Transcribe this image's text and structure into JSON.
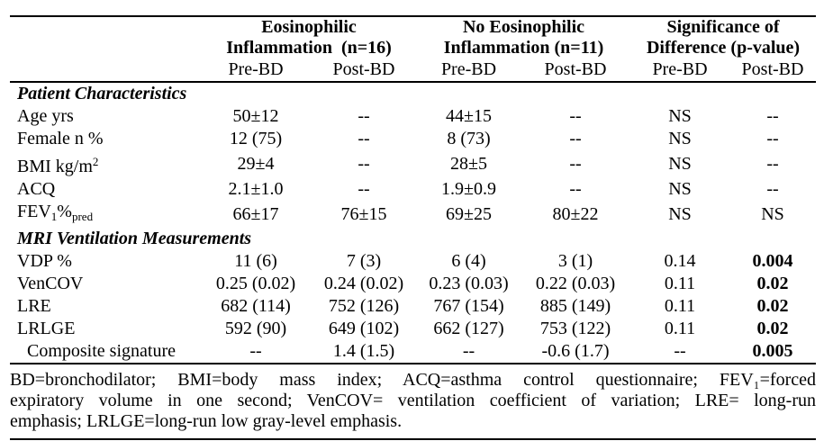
{
  "table": {
    "col_groups": [
      {
        "line1": "Eosinophilic",
        "line2": "Inflammation  (n=16)"
      },
      {
        "line1": "No Eosinophilic",
        "line2": "Inflammation (n=11)"
      },
      {
        "line1": "Significance of",
        "line2": "Difference (p-value)"
      }
    ],
    "sub_headers": [
      "Pre-BD",
      "Post-BD",
      "Pre-BD",
      "Post-BD",
      "Pre-BD",
      "Post-BD"
    ],
    "sections": [
      {
        "title": "Patient Characteristics",
        "rows": [
          {
            "label_parts": [
              {
                "t": "Age yrs"
              }
            ],
            "cells": [
              "50±12",
              "--",
              "44±15",
              "--",
              "NS",
              "--"
            ],
            "bold_cells": []
          },
          {
            "label_parts": [
              {
                "t": "Female n %"
              }
            ],
            "cells": [
              "12 (75)",
              "--",
              "8 (73)",
              "--",
              "NS",
              "--"
            ],
            "bold_cells": []
          },
          {
            "label_parts": [
              {
                "t": "BMI kg/m"
              },
              {
                "t": "2",
                "sup": true
              }
            ],
            "cells": [
              "29±4",
              "--",
              "28±5",
              "--",
              "NS",
              "--"
            ],
            "bold_cells": []
          },
          {
            "label_parts": [
              {
                "t": "ACQ"
              }
            ],
            "cells": [
              "2.1±1.0",
              "--",
              "1.9±0.9",
              "--",
              "NS",
              "--"
            ],
            "bold_cells": []
          },
          {
            "label_parts": [
              {
                "t": "FEV"
              },
              {
                "t": "1",
                "sub": true
              },
              {
                "t": "%"
              },
              {
                "t": "pred",
                "sub": true
              }
            ],
            "cells": [
              "66±17",
              "76±15",
              "69±25",
              "80±22",
              "NS",
              "NS"
            ],
            "bold_cells": []
          }
        ]
      },
      {
        "title": "MRI Ventilation Measurements",
        "rows": [
          {
            "label_parts": [
              {
                "t": "VDP %"
              }
            ],
            "cells": [
              "11 (6)",
              "7 (3)",
              "6 (4)",
              "3 (1)",
              "0.14",
              "0.004"
            ],
            "bold_cells": [
              5
            ]
          },
          {
            "label_parts": [
              {
                "t": "VenCOV"
              }
            ],
            "cells": [
              "0.25 (0.02)",
              "0.24 (0.02)",
              "0.23 (0.03)",
              "0.22 (0.03)",
              "0.11",
              "0.02"
            ],
            "bold_cells": [
              5
            ]
          },
          {
            "label_parts": [
              {
                "t": "LRE"
              }
            ],
            "cells": [
              "682 (114)",
              "752 (126)",
              "767 (154)",
              "885 (149)",
              "0.11",
              "0.02"
            ],
            "bold_cells": [
              5
            ]
          },
          {
            "label_parts": [
              {
                "t": "LRLGE"
              }
            ],
            "cells": [
              "592 (90)",
              "649 (102)",
              "662 (127)",
              "753 (122)",
              "0.11",
              "0.02"
            ],
            "bold_cells": [
              5
            ]
          },
          {
            "label_parts": [
              {
                "t": "Composite signature"
              }
            ],
            "cells": [
              "--",
              "1.4 (1.5)",
              "--",
              "-0.6 (1.7)",
              "--",
              "0.005"
            ],
            "bold_cells": [
              5
            ],
            "indent": true
          }
        ]
      }
    ]
  },
  "footnote": {
    "lines": [
      "BD=bronchodilator; BMI=body mass index; ACQ=asthma control questionnaire; FEV₁=forced",
      "expiratory volume in one second; VenCOV= ventilation coefficient of variation; LRE= long-run",
      "emphasis; LRLGE=long-run low gray-level emphasis."
    ]
  },
  "colors": {
    "text": "#000000",
    "background": "#ffffff",
    "rule": "#000000"
  }
}
